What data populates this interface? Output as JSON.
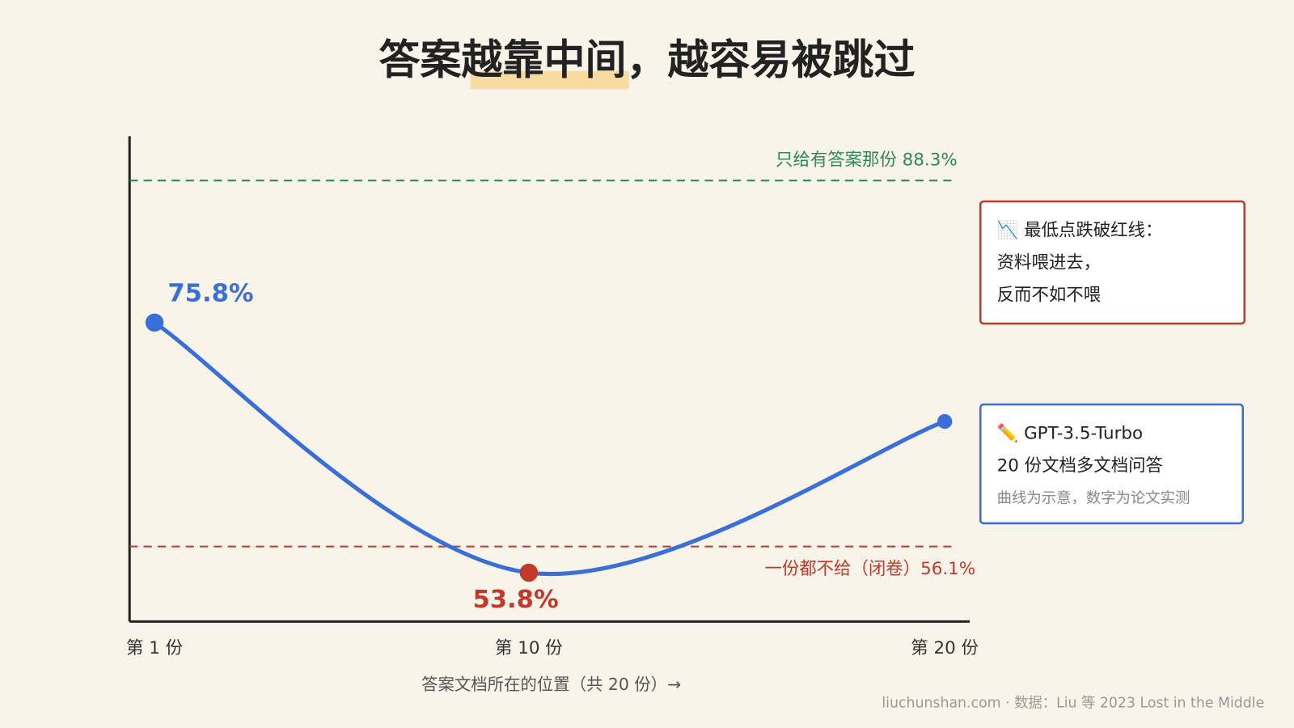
{
  "chart_data": {
    "type": "line",
    "title": "答案越靠中间，越容易被跳过",
    "x_label": "答案文档所在的位置（共 20 份）→",
    "x": [
      1,
      10,
      20
    ],
    "values": [
      75.8,
      53.8,
      67.1
    ],
    "value_labels": [
      "75.8%",
      "53.8%",
      null
    ],
    "color": "#3a6fd8",
    "point_colors": [
      "#3a6fd8",
      "#c0392b",
      "#3a6fd8"
    ],
    "xlim": [
      0.4,
      20.6
    ],
    "ylim": [
      49.5,
      92.2
    ],
    "xticks": [
      {
        "value": 1,
        "label": "第 1 份"
      },
      {
        "value": 10,
        "label": "第 10 份"
      },
      {
        "value": 20,
        "label": "第 20 份"
      }
    ],
    "reference_lines": [
      {
        "value": 88.3,
        "label": "只给有答案那份 88.3%",
        "color": "#2e8b57"
      },
      {
        "value": 56.1,
        "label": "一份都不给（闭卷）56.1%",
        "color": "#c0392b"
      }
    ]
  },
  "notes": [
    {
      "color": "#c0392b",
      "lines": [
        "📉 最低点跌破红线：",
        "资料喂进去，",
        "反而不如不喂"
      ]
    },
    {
      "color": "#3a6fd8",
      "lines": [
        "✏️ GPT-3.5-Turbo",
        "20 份文档多文档问答",
        "曲线为示意，数字为论文实测"
      ]
    }
  ],
  "footer": "liuchunshan.com · 数据：Liu 等 2023 Lost in the Middle"
}
